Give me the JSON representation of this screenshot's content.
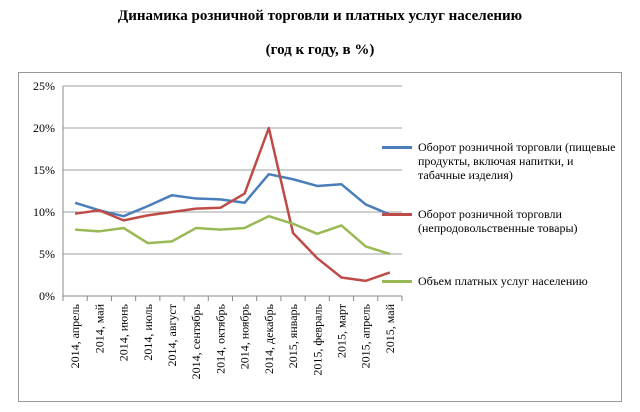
{
  "chart_data": {
    "type": "line",
    "title": "Динамика розничной торговли и платных услуг населению",
    "subtitle": "(год к году, в %)",
    "xlabel": "",
    "ylabel": "",
    "ylim": [
      0,
      25
    ],
    "yticks": [
      "0%",
      "5%",
      "10%",
      "15%",
      "20%",
      "25%"
    ],
    "categories": [
      "2014, апрель",
      "2014, май",
      "2014, июнь",
      "2014, июль",
      "2014, август",
      "2014, сентябрь",
      "2014, октябрь",
      "2014, ноябрь",
      "2014, декабрь",
      "2015, январь",
      "2015, февраль",
      "2015, март",
      "2015, апрель",
      "2015, май"
    ],
    "grid": true,
    "legend": "right",
    "series": [
      {
        "name": "Оборот розничной торговли (пищевые продукты, включая напитки, и табачные изделия)",
        "color": "#4a7ebb",
        "values": [
          11.1,
          10.2,
          9.5,
          10.7,
          12.0,
          11.6,
          11.5,
          11.1,
          14.5,
          13.9,
          13.1,
          13.3,
          10.9,
          9.7
        ]
      },
      {
        "name": "Оборот розничной торговли (непродовольственные товары)",
        "color": "#be4b48",
        "values": [
          9.8,
          10.2,
          9.0,
          9.6,
          10.0,
          10.4,
          10.5,
          12.2,
          20.0,
          7.5,
          4.5,
          2.2,
          1.8,
          2.8
        ]
      },
      {
        "name": "Объем платных услуг населению",
        "color": "#98b954",
        "values": [
          7.9,
          7.7,
          8.1,
          6.3,
          6.5,
          8.1,
          7.9,
          8.1,
          9.5,
          8.6,
          7.4,
          8.4,
          5.9,
          5.0
        ]
      }
    ]
  }
}
